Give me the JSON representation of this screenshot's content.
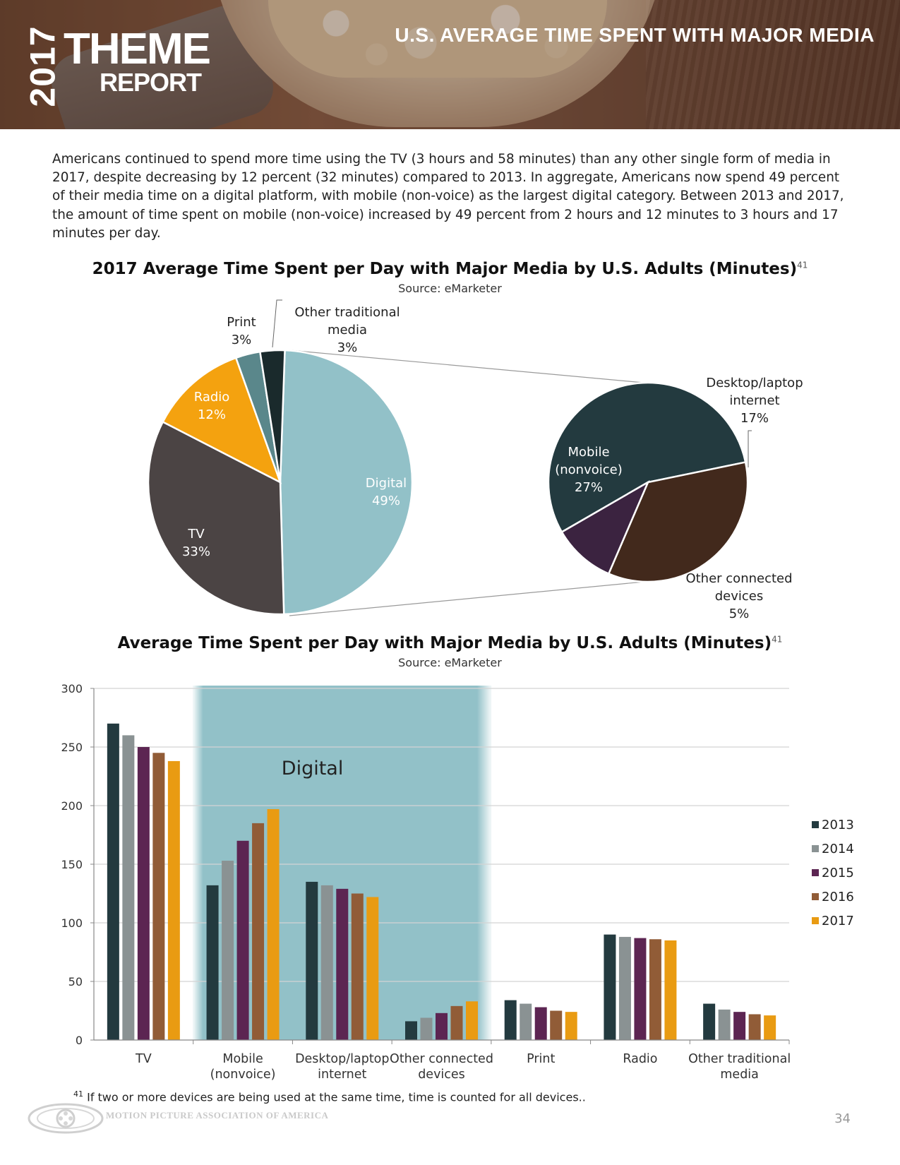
{
  "header": {
    "year": "2017",
    "theme": "THEME",
    "report": "REPORT",
    "title": "U.S. AVERAGE TIME SPENT WITH MAJOR MEDIA"
  },
  "intro": "Americans continued to spend more time using the TV (3 hours and 58 minutes) than any other single form of media in 2017, despite decreasing by 12 percent (32 minutes) compared to 2013. In aggregate, Americans now spend 49 percent of their media time on a digital platform, with mobile (non-voice) as the largest digital category. Between 2013 and 2017, the amount of time spent on mobile (non-voice) increased by 49 percent from 2 hours and 12 minutes to 3 hours and 17 minutes per day.",
  "chart_data": [
    {
      "type": "pie",
      "title": "2017 Average Time Spent per Day with Major Media by U.S. Adults (Minutes)",
      "footnote_ref": "41",
      "source": "Source: eMarketer",
      "slices": [
        {
          "name": "Digital",
          "label": "Digital 49%",
          "value": 49,
          "color": "#92c1c8"
        },
        {
          "name": "TV",
          "label": "TV 33%",
          "value": 33,
          "color": "#4b4444"
        },
        {
          "name": "Radio",
          "label": "Radio 12%",
          "value": 12,
          "color": "#f4a20f"
        },
        {
          "name": "Print",
          "label": "Print 3%",
          "value": 3,
          "color": "#5a878b"
        },
        {
          "name": "Other traditional media",
          "label": "Other traditional media 3%",
          "value": 3,
          "color": "#1a2a2c"
        }
      ],
      "labels": {
        "digital": [
          "Digital",
          "49%"
        ],
        "tv": [
          "TV",
          "33%"
        ],
        "radio": [
          "Radio",
          "12%"
        ],
        "print": [
          "Print",
          "3%"
        ],
        "other_traditional": [
          "Other traditional",
          "media",
          "3%"
        ]
      },
      "breakdown": {
        "of": "Digital",
        "slices": [
          {
            "name": "Mobile (nonvoice)",
            "value": 27,
            "color": "#233a3f"
          },
          {
            "name": "Desktop/laptop internet",
            "value": 17,
            "color": "#42291c"
          },
          {
            "name": "Other connected devices",
            "value": 5,
            "color": "#3b2340"
          }
        ],
        "labels": {
          "mobile": [
            "Mobile",
            "(nonvoice)",
            "27%"
          ],
          "desktop": [
            "Desktop/laptop",
            "internet",
            "17%"
          ],
          "other_connected": [
            "Other connected",
            "devices",
            "5%"
          ]
        }
      }
    },
    {
      "type": "bar",
      "title": "Average Time Spent per Day with Major Media by U.S. Adults (Minutes)",
      "footnote_ref": "41",
      "source": "Source: eMarketer",
      "categories": [
        "TV",
        "Mobile (nonvoice)",
        "Desktop/laptop internet",
        "Other connected devices",
        "Print",
        "Radio",
        "Other traditional media"
      ],
      "category_lines": [
        [
          "TV"
        ],
        [
          "Mobile",
          "(nonvoice)"
        ],
        [
          "Desktop/laptop",
          "internet"
        ],
        [
          "Other connected",
          "devices"
        ],
        [
          "Print"
        ],
        [
          "Radio"
        ],
        [
          "Other traditional",
          "media"
        ]
      ],
      "series": [
        {
          "name": "2013",
          "color": "#233a3f",
          "values": [
            270,
            132,
            135,
            16,
            34,
            90,
            31
          ]
        },
        {
          "name": "2014",
          "color": "#8a9293",
          "values": [
            260,
            153,
            132,
            19,
            31,
            88,
            26
          ]
        },
        {
          "name": "2015",
          "color": "#5c2552",
          "values": [
            250,
            170,
            129,
            23,
            28,
            87,
            24
          ]
        },
        {
          "name": "2016",
          "color": "#915c37",
          "values": [
            245,
            185,
            125,
            29,
            25,
            86,
            22
          ]
        },
        {
          "name": "2017",
          "color": "#e99b12",
          "values": [
            238,
            197,
            122,
            33,
            24,
            85,
            21
          ]
        }
      ],
      "ylim": [
        0,
        300
      ],
      "yticks": [
        0,
        50,
        100,
        150,
        200,
        250,
        300
      ],
      "highlight": {
        "label": "Digital",
        "categories": [
          "Mobile (nonvoice)",
          "Desktop/laptop internet",
          "Other connected devices"
        ],
        "color": "#92c1c8"
      },
      "legend_position": "right"
    }
  ],
  "footnote": {
    "ref": "41",
    "text": "If two or more devices are being used at the same time, time is counted for all devices.."
  },
  "footer": {
    "organization": "MOTION PICTURE ASSOCIATION OF AMERICA",
    "page_number": "34"
  }
}
